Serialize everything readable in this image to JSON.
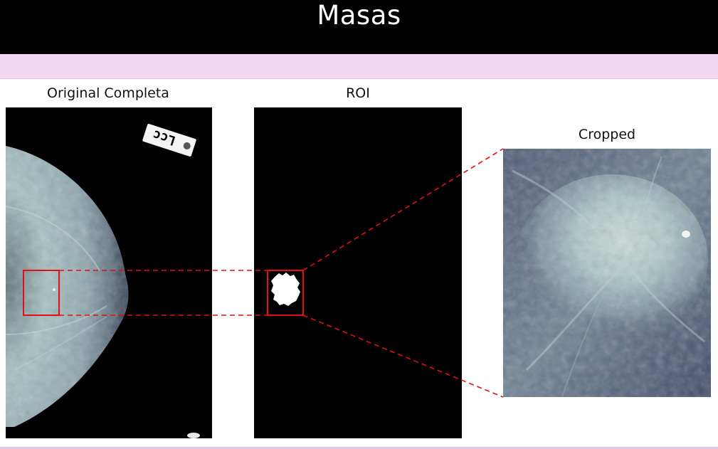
{
  "header": {
    "title": "Masas"
  },
  "panels": {
    "original": {
      "title": "Original Completa",
      "marker_text": "Lcc"
    },
    "roi": {
      "title": "ROI"
    },
    "cropped": {
      "title": "Cropped"
    }
  },
  "colors": {
    "header_bg": "#000000",
    "band": "#f3d6ef",
    "highlight": "#e01010",
    "tissue": "#b4cece"
  }
}
